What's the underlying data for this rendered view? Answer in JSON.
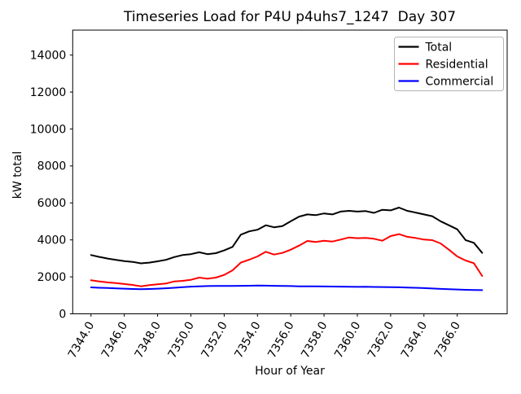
{
  "figure": {
    "background": "#ffffff"
  },
  "chart_data": {
    "type": "line",
    "title": "Timeseries Load for P4U p4uhs7_1247  Day 307",
    "xlabel": "Hour of Year",
    "ylabel": "kW total",
    "xlim": [
      7342.9,
      7369.0
    ],
    "ylim": [
      0,
      15350
    ],
    "grid": false,
    "legend_position": "upper right",
    "xtick_values": [
      7344,
      7346,
      7348,
      7350,
      7352,
      7354,
      7356,
      7358,
      7360,
      7362,
      7364,
      7366
    ],
    "xtick_labels": [
      "7344.0",
      "7346.0",
      "7348.0",
      "7350.0",
      "7352.0",
      "7354.0",
      "7356.0",
      "7358.0",
      "7360.0",
      "7362.0",
      "7364.0",
      "7366.0"
    ],
    "ytick_values": [
      0,
      2000,
      4000,
      6000,
      8000,
      10000,
      12000,
      14000
    ],
    "ytick_labels": [
      "0",
      "2000",
      "4000",
      "6000",
      "8000",
      "10000",
      "12000",
      "14000"
    ],
    "x": [
      7344.0,
      7344.5,
      7345.0,
      7345.5,
      7346.0,
      7346.5,
      7347.0,
      7347.5,
      7348.0,
      7348.5,
      7349.0,
      7349.5,
      7350.0,
      7350.5,
      7351.0,
      7351.5,
      7352.0,
      7352.5,
      7353.0,
      7353.5,
      7354.0,
      7354.5,
      7355.0,
      7355.5,
      7356.0,
      7356.5,
      7357.0,
      7357.5,
      7358.0,
      7358.5,
      7359.0,
      7359.5,
      7360.0,
      7360.5,
      7361.0,
      7361.5,
      7362.0,
      7362.5,
      7363.0,
      7363.5,
      7364.0,
      7364.5,
      7365.0,
      7365.5,
      7366.0,
      7366.5,
      7367.0,
      7367.5
    ],
    "series": [
      {
        "name": "Total",
        "color": "#000000",
        "values": [
          3180,
          3080,
          2990,
          2920,
          2850,
          2810,
          2730,
          2770,
          2840,
          2920,
          3070,
          3180,
          3230,
          3330,
          3230,
          3280,
          3430,
          3620,
          4280,
          4460,
          4550,
          4790,
          4680,
          4750,
          5010,
          5260,
          5380,
          5340,
          5430,
          5380,
          5530,
          5570,
          5530,
          5560,
          5460,
          5630,
          5600,
          5750,
          5570,
          5480,
          5380,
          5280,
          5010,
          4790,
          4570,
          3990,
          3840,
          3300
        ]
      },
      {
        "name": "Residential",
        "color": "#ff0000",
        "values": [
          1815,
          1755,
          1700,
          1665,
          1610,
          1565,
          1490,
          1550,
          1595,
          1640,
          1755,
          1785,
          1840,
          1960,
          1900,
          1960,
          2105,
          2350,
          2770,
          2930,
          3105,
          3355,
          3205,
          3295,
          3470,
          3690,
          3940,
          3885,
          3955,
          3910,
          4015,
          4130,
          4090,
          4105,
          4060,
          3955,
          4205,
          4310,
          4165,
          4105,
          4015,
          3985,
          3810,
          3470,
          3105,
          2885,
          2740,
          2050
        ]
      },
      {
        "name": "Commercial",
        "color": "#0000ff",
        "values": [
          1430,
          1410,
          1395,
          1380,
          1360,
          1345,
          1335,
          1345,
          1360,
          1385,
          1410,
          1440,
          1470,
          1490,
          1500,
          1505,
          1505,
          1510,
          1515,
          1520,
          1530,
          1525,
          1515,
          1510,
          1500,
          1490,
          1490,
          1485,
          1480,
          1475,
          1470,
          1465,
          1460,
          1465,
          1455,
          1450,
          1445,
          1435,
          1420,
          1410,
          1390,
          1370,
          1350,
          1330,
          1315,
          1300,
          1290,
          1280
        ]
      }
    ],
    "legend_items": [
      {
        "label": "Total",
        "color": "#000000"
      },
      {
        "label": "Residential",
        "color": "#ff0000"
      },
      {
        "label": "Commercial",
        "color": "#0000ff"
      }
    ]
  }
}
